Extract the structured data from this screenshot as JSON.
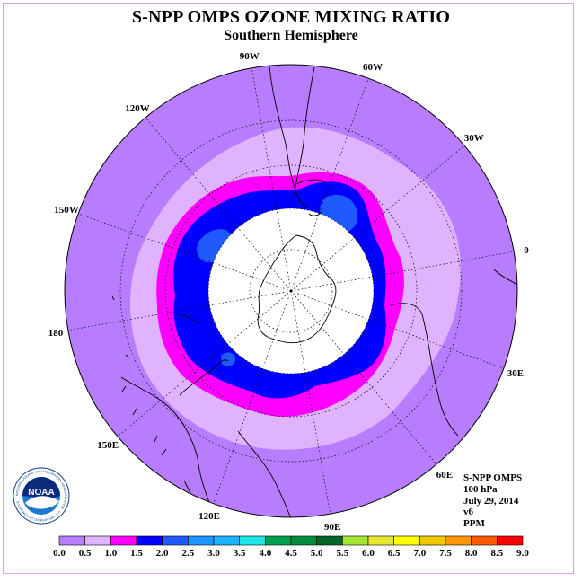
{
  "title": "S-NPP OMPS OZONE MIXING RATIO",
  "subtitle": "Southern Hemisphere",
  "info": {
    "instrument": "S-NPP OMPS",
    "level": "100 hPa",
    "date": "July 29, 2014",
    "version": "v6",
    "units": "PPM"
  },
  "logo": {
    "text": "NOAA",
    "ring_text": "NATIONAL OCEANIC AND ATMOSPHERIC ADMINISTRATION · U.S. DEPARTMENT OF COMMERCE"
  },
  "longitude_labels": [
    {
      "text": "0",
      "lon": 0
    },
    {
      "text": "30E",
      "lon": 30
    },
    {
      "text": "60E",
      "lon": 60
    },
    {
      "text": "90E",
      "lon": 90
    },
    {
      "text": "120E",
      "lon": 120
    },
    {
      "text": "150E",
      "lon": 150
    },
    {
      "text": "180",
      "lon": 180
    },
    {
      "text": "150W",
      "lon": -150
    },
    {
      "text": "120W",
      "lon": -120
    },
    {
      "text": "90W",
      "lon": -90
    },
    {
      "text": "60W",
      "lon": -60
    },
    {
      "text": "30W",
      "lon": -30
    }
  ],
  "colorbar": {
    "ticks": [
      "0.0",
      "0.5",
      "1.0",
      "1.5",
      "2.0",
      "2.5",
      "3.0",
      "3.5",
      "4.0",
      "4.5",
      "5.0",
      "5.5",
      "6.0",
      "6.5",
      "7.0",
      "7.5",
      "8.0",
      "8.5",
      "9.0"
    ],
    "colors": [
      "#b87dff",
      "#e0b3ff",
      "#ff00ff",
      "#0000ff",
      "#1e5aff",
      "#1e96ff",
      "#1eb4ff",
      "#1ee6e6",
      "#00a050",
      "#008c3c",
      "#006428",
      "#a0e632",
      "#e6e632",
      "#ffff00",
      "#f0c800",
      "#ff9600",
      "#ff5a00",
      "#ff0000",
      "#8c5a3c"
    ]
  },
  "chart_data": {
    "type": "heatmap",
    "title": "S-NPP OMPS OZONE MIXING RATIO",
    "subtitle": "Southern Hemisphere",
    "projection": "south polar stereographic",
    "variable": "ozone mixing ratio",
    "units": "PPM",
    "pressure_level": "100 hPa",
    "date": "July 29, 2014",
    "bins": [
      0.0,
      0.5,
      1.0,
      1.5,
      2.0,
      2.5,
      3.0,
      3.5,
      4.0,
      4.5,
      5.0,
      5.5,
      6.0,
      6.5,
      7.0,
      7.5,
      8.0,
      8.5,
      9.0
    ],
    "observed_bands": [
      {
        "range": "0.0-0.5",
        "region": "outer mid-latitudes"
      },
      {
        "range": "0.5-1.0",
        "region": "ring around 45-55S"
      },
      {
        "range": "1.0-1.5",
        "region": "ring around 55-60S"
      },
      {
        "range": "1.5-2.0",
        "region": "ring around 60-70S"
      },
      {
        "range": "2.0-2.5",
        "region": "patches near 65S"
      },
      {
        "range": "no data",
        "region": "polar night cap poleward of ~70S"
      }
    ]
  }
}
